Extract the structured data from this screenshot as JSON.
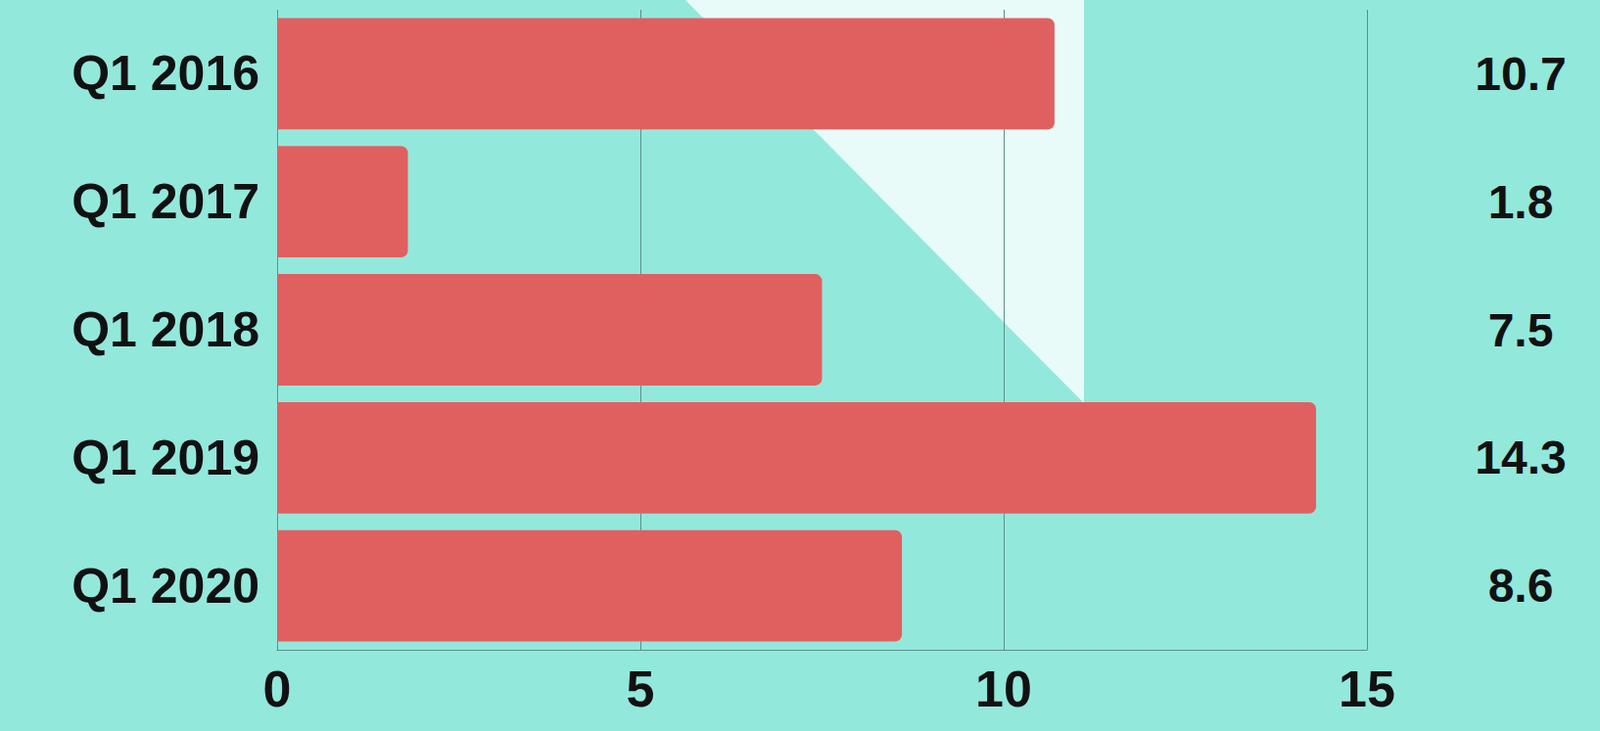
{
  "chart_data": {
    "type": "bar",
    "orientation": "horizontal",
    "categories": [
      "Q1 2016",
      "Q1 2017",
      "Q1 2018",
      "Q1 2019",
      "Q1 2020"
    ],
    "values": [
      10.7,
      1.8,
      7.5,
      14.3,
      8.6
    ],
    "color": "#e06060",
    "xlim": [
      0,
      15
    ],
    "xticks": [
      0,
      5,
      10,
      15
    ],
    "grid": true,
    "data_labels": true
  }
}
